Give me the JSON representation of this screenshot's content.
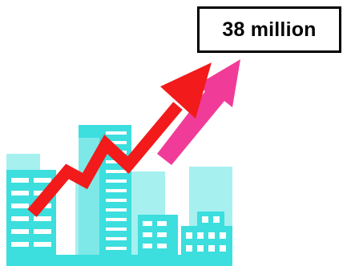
{
  "value_label": "38 million",
  "colors": {
    "buildings_light": "#a6f0f0",
    "buildings_main": "#3cdede",
    "windows": "#ffffff",
    "arrow_red": "#f21a1a",
    "arrow_pink": "#f03c98",
    "box_border": "#000000"
  },
  "icons": [
    "city-skyline-icon",
    "rising-red-arrow-icon",
    "rising-pink-arrow-icon"
  ]
}
